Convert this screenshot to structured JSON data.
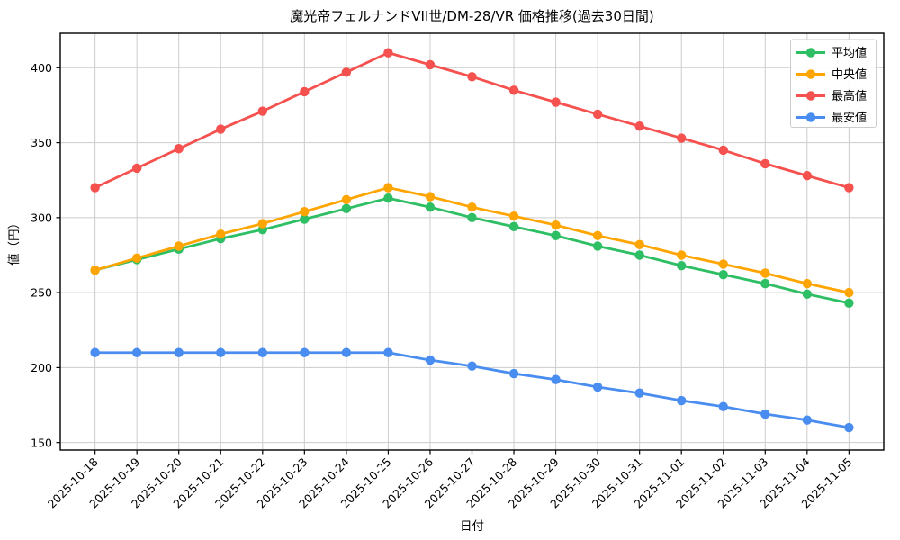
{
  "figure": {
    "title": "魔光帝フェルナンドVII世/DM-28/VR 価格推移(過去30日間)"
  },
  "chart_data": {
    "type": "line",
    "title": "魔光帝フェルナンドVII世/DM-28/VR 価格推移(過去30日間)",
    "xlabel": "日付",
    "ylabel": "値（円）",
    "grid": true,
    "legend_position": "top-right",
    "ylim": [
      145,
      423
    ],
    "yticks": [
      150,
      200,
      250,
      300,
      350,
      400
    ],
    "categories": [
      "2025-10-18",
      "2025-10-19",
      "2025-10-20",
      "2025-10-21",
      "2025-10-22",
      "2025-10-23",
      "2025-10-24",
      "2025-10-25",
      "2025-10-26",
      "2025-10-27",
      "2025-10-28",
      "2025-10-29",
      "2025-10-30",
      "2025-10-31",
      "2025-11-01",
      "2025-11-02",
      "2025-11-03",
      "2025-11-04",
      "2025-11-05"
    ],
    "series": [
      {
        "name": "平均値",
        "color": "#2EBE64",
        "values": [
          265,
          272,
          279,
          286,
          292,
          299,
          306,
          313,
          307,
          300,
          294,
          288,
          281,
          275,
          268,
          262,
          256,
          249,
          243
        ]
      },
      {
        "name": "中央値",
        "color": "#FFA502",
        "values": [
          265,
          273,
          281,
          289,
          296,
          304,
          312,
          320,
          314,
          307,
          301,
          295,
          288,
          282,
          275,
          269,
          263,
          256,
          250
        ]
      },
      {
        "name": "最高値",
        "color": "#F5514F",
        "values": [
          320,
          333,
          346,
          359,
          371,
          384,
          397,
          410,
          402,
          394,
          385,
          377,
          369,
          361,
          353,
          345,
          336,
          328,
          320
        ]
      },
      {
        "name": "最安値",
        "color": "#4A8DF0",
        "values": [
          210,
          210,
          210,
          210,
          210,
          210,
          210,
          210,
          205,
          201,
          196,
          192,
          187,
          183,
          178,
          174,
          169,
          165,
          160
        ]
      }
    ],
    "colors": {
      "grid": "#CCCCCC",
      "axis": "#000000",
      "text": "#000000",
      "background": "#FFFFFF",
      "legend_border": "#CCCCCC"
    }
  }
}
